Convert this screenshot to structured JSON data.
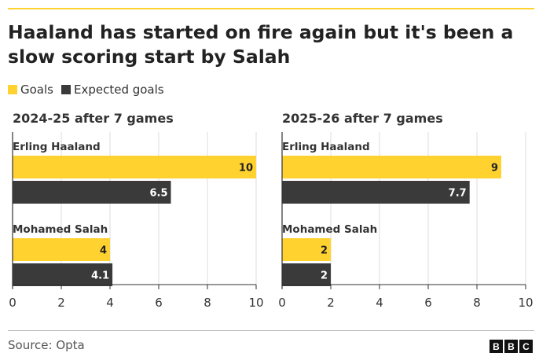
{
  "title": "Haaland has started on fire again but it's been a slow scoring start by Salah",
  "legend": [
    {
      "label": "Goals",
      "color": "#ffd230"
    },
    {
      "label": "Expected goals",
      "color": "#3a3a3a"
    }
  ],
  "source": "Source: Opta",
  "logo": [
    "B",
    "B",
    "C"
  ],
  "chart_data": [
    {
      "type": "bar",
      "orientation": "horizontal",
      "title": "2024-25 after 7 games",
      "categories": [
        "Erling Haaland",
        "Mohamed Salah"
      ],
      "series": [
        {
          "name": "Goals",
          "values": [
            10,
            4
          ],
          "labels": [
            "10",
            "4"
          ]
        },
        {
          "name": "Expected goals",
          "values": [
            6.5,
            4.1
          ],
          "labels": [
            "6.5",
            "4.1"
          ]
        }
      ],
      "xlim": [
        0,
        10
      ],
      "xticks": [
        "0",
        "2",
        "4",
        "6",
        "8",
        "10"
      ],
      "grid": true
    },
    {
      "type": "bar",
      "orientation": "horizontal",
      "title": "2025-26 after 7 games",
      "categories": [
        "Erling Haaland",
        "Mohamed Salah"
      ],
      "series": [
        {
          "name": "Goals",
          "values": [
            9,
            2
          ],
          "labels": [
            "9",
            "2"
          ]
        },
        {
          "name": "Expected goals",
          "values": [
            7.7,
            2
          ],
          "labels": [
            "7.7",
            "2"
          ]
        }
      ],
      "xlim": [
        0,
        10
      ],
      "xticks": [
        "0",
        "2",
        "4",
        "6",
        "8",
        "10"
      ],
      "grid": true
    }
  ]
}
